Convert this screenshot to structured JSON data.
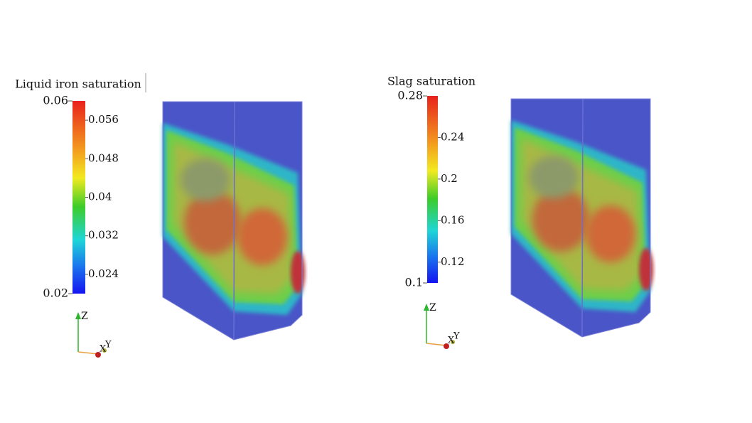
{
  "panels": [
    {
      "title": "Liquid iron saturation",
      "max": 0.06,
      "min": 0.02,
      "ticks": [
        0.056,
        0.048,
        0.04,
        0.032,
        0.024
      ],
      "axes": [
        "Z",
        "X",
        "Y"
      ]
    },
    {
      "title": "Slag saturation",
      "max": 0.28,
      "min": 0.1,
      "ticks": [
        0.24,
        0.2,
        0.16,
        0.12
      ],
      "axes": [
        "Z",
        "X",
        "Y"
      ]
    }
  ]
}
